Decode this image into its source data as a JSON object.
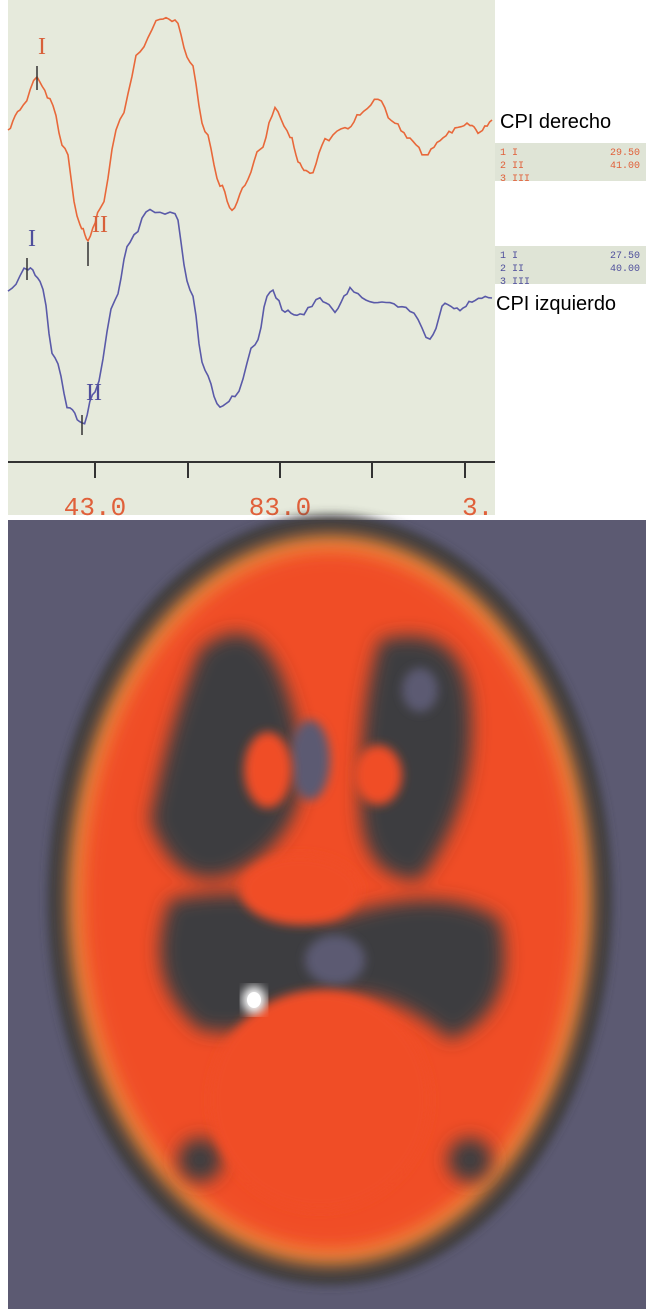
{
  "waveforms": {
    "right": {
      "label": "CPI derecho",
      "peak_labels": [
        "I",
        "II"
      ],
      "measurements": [
        [
          "1",
          "I",
          "29.50"
        ],
        [
          "2",
          "II",
          "41.00"
        ],
        [
          "3",
          "III"
        ]
      ]
    },
    "left": {
      "label": "CPI izquierdo",
      "peak_labels": [
        "I",
        "II"
      ],
      "measurements": [
        [
          "1",
          "I",
          "27.50"
        ],
        [
          "2",
          "II",
          "40.00"
        ],
        [
          "3",
          "III"
        ]
      ]
    },
    "axis_labels": [
      "43.0",
      "83.0",
      "3."
    ]
  }
}
